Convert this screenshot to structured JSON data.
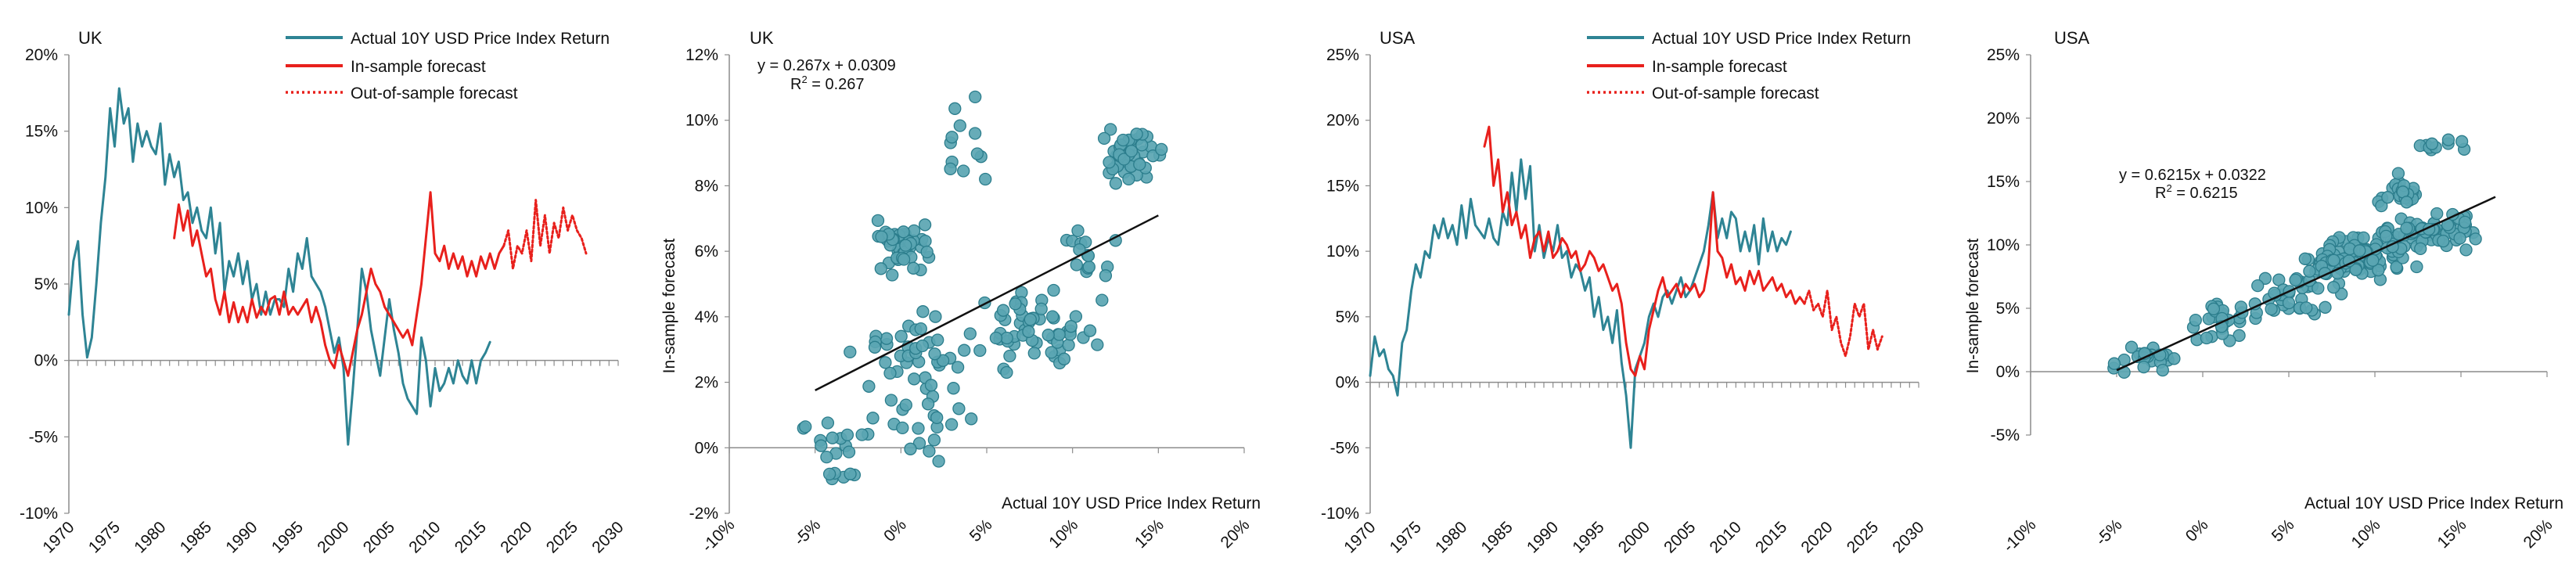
{
  "colors": {
    "actual": "#2e8494",
    "forecast": "#e8201c",
    "scatter_fill": "#5aa5b2",
    "scatter_stroke": "#2b7d8c",
    "axis": "#8c8c8c",
    "fit": "#111111"
  },
  "legend": {
    "actual": "Actual 10Y USD Price Index Return",
    "in_sample": "In-sample forecast",
    "out_sample": "Out-of-sample forecast"
  },
  "chart_data": [
    {
      "type": "line",
      "title": "UK",
      "yticks": [
        "20%",
        "15%",
        "10%",
        "5%",
        "0%",
        "-5%",
        "-10%"
      ],
      "xticks": [
        "1970",
        "1975",
        "1980",
        "1985",
        "1990",
        "1995",
        "2000",
        "2005",
        "2010",
        "2015",
        "2020",
        "2025",
        "2030"
      ],
      "xlim": [
        1970,
        2030
      ],
      "ylim": [
        -10,
        20
      ],
      "series": [
        {
          "name": "Actual 10Y USD Price Index Return",
          "style": "actual",
          "x": [
            1970,
            1970.5,
            1971,
            1971.5,
            1972,
            1972.5,
            1973,
            1973.5,
            1974,
            1974.5,
            1975,
            1975.5,
            1976,
            1976.5,
            1977,
            1977.5,
            1978,
            1978.5,
            1979,
            1979.5,
            1980,
            1980.5,
            1981,
            1981.5,
            1982,
            1982.5,
            1983,
            1983.5,
            1984,
            1984.5,
            1985,
            1985.5,
            1986,
            1986.5,
            1987,
            1987.5,
            1988,
            1988.5,
            1989,
            1989.5,
            1990,
            1990.5,
            1991,
            1991.5,
            1992,
            1992.5,
            1993,
            1993.5,
            1994,
            1994.5,
            1995,
            1995.5,
            1996,
            1996.5,
            1997,
            1997.5,
            1998,
            1998.5,
            1999,
            1999.5,
            2000,
            2000.5,
            2001,
            2001.5,
            2002,
            2002.5,
            2003,
            2003.5,
            2004,
            2004.5,
            2005,
            2005.5,
            2006,
            2006.5,
            2007,
            2007.5,
            2008,
            2008.5,
            2009,
            2009.5,
            2010,
            2010.5,
            2011,
            2011.5,
            2012,
            2012.5,
            2013,
            2013.5,
            2014,
            2014.5,
            2015,
            2015.5,
            2016
          ],
          "y": [
            3.0,
            6.5,
            7.8,
            3.0,
            0.2,
            1.5,
            5.0,
            9.0,
            12.0,
            16.5,
            14.0,
            17.8,
            15.5,
            16.5,
            13.0,
            15.5,
            14.0,
            15.0,
            14.0,
            13.5,
            15.5,
            11.5,
            13.5,
            12.0,
            13.0,
            10.5,
            11.0,
            9.0,
            10.0,
            8.5,
            8.0,
            10.0,
            7.0,
            9.0,
            4.5,
            6.5,
            5.5,
            7.0,
            5.0,
            6.5,
            4.0,
            5.0,
            3.0,
            4.5,
            3.0,
            4.0,
            4.0,
            3.5,
            6.0,
            4.5,
            7.0,
            6.0,
            8.0,
            5.5,
            5.0,
            4.5,
            3.5,
            2.0,
            0.5,
            1.5,
            -0.5,
            -5.5,
            -2.0,
            2.0,
            6.0,
            4.5,
            2.0,
            0.5,
            -1.0,
            1.5,
            4.0,
            2.0,
            0.5,
            -1.5,
            -2.5,
            -3.0,
            -3.5,
            1.5,
            0.0,
            -3.0,
            -0.5,
            -2.0,
            -1.5,
            -0.5,
            -1.5,
            0.0,
            -1.0,
            -1.5,
            0.0,
            -1.5,
            0.0,
            0.5,
            1.2
          ]
        },
        {
          "name": "In-sample forecast",
          "style": "in_sample",
          "x": [
            1981.5,
            1982,
            1982.5,
            1983,
            1983.5,
            1984,
            1984.5,
            1985,
            1985.5,
            1986,
            1986.5,
            1987,
            1987.5,
            1988,
            1988.5,
            1989,
            1989.5,
            1990,
            1990.5,
            1991,
            1991.5,
            1992,
            1992.5,
            1993,
            1993.5,
            1994,
            1994.5,
            1995,
            1995.5,
            1996,
            1996.5,
            1997,
            1997.5,
            1998,
            1998.5,
            1999,
            1999.5,
            2000,
            2000.5,
            2001,
            2001.5,
            2002,
            2002.5,
            2003,
            2003.5,
            2004,
            2004.5,
            2005,
            2005.5,
            2006,
            2006.5,
            2007,
            2007.5,
            2008,
            2008.5,
            2009,
            2009.5,
            2010,
            2010.5,
            2011,
            2011.5,
            2012,
            2012.5,
            2013,
            2013.5,
            2014,
            2014.5,
            2015,
            2015.5,
            2016,
            2016.5,
            2017,
            2017.5
          ],
          "y": [
            8.0,
            10.2,
            8.5,
            9.8,
            7.5,
            8.5,
            7.0,
            5.5,
            6.0,
            4.0,
            3.0,
            4.5,
            2.5,
            3.8,
            2.5,
            3.5,
            2.5,
            4.0,
            2.8,
            3.5,
            3.0,
            4.0,
            4.2,
            3.0,
            4.5,
            3.0,
            3.5,
            3.0,
            3.5,
            4.0,
            2.5,
            3.5,
            2.5,
            1.0,
            0.0,
            -0.5,
            1.0,
            0.0,
            -1.0,
            0.5,
            2.0,
            3.0,
            4.5,
            6.0,
            5.0,
            4.5,
            3.5,
            3.0,
            2.5,
            2.0,
            1.5,
            2.0,
            1.0,
            3.0,
            5.0,
            8.0,
            11.0,
            7.0,
            6.5,
            7.5,
            6.0,
            7.0,
            6.0,
            6.8,
            5.5,
            6.5,
            5.5,
            6.8,
            6.0,
            7.0,
            6.0,
            7.0,
            7.5
          ]
        },
        {
          "name": "Out-of-sample forecast",
          "style": "out_sample",
          "x": [
            2017.5,
            2018,
            2018.5,
            2019,
            2019.5,
            2020,
            2020.5,
            2021,
            2021.5,
            2022,
            2022.5,
            2023,
            2023.5,
            2024,
            2024.5,
            2025,
            2025.5,
            2026,
            2026.5
          ],
          "y": [
            7.5,
            8.5,
            6.0,
            7.5,
            7.0,
            8.5,
            6.5,
            10.5,
            7.5,
            9.5,
            7.0,
            9.0,
            8.0,
            10.0,
            8.5,
            9.5,
            8.5,
            8.0,
            7.0
          ]
        }
      ]
    },
    {
      "type": "scatter",
      "title": "UK",
      "ylabel": "In-sample forecast",
      "xlabel": "Actual 10Y USD Price Index Return",
      "equation": "y = 0.267x + 0.0309",
      "r2_label": "R",
      "r2_value": "2",
      "r2_rest": " = 0.267",
      "yticks": [
        "12%",
        "10%",
        "8%",
        "6%",
        "4%",
        "2%",
        "0%",
        "-2%"
      ],
      "xticks": [
        "-10%",
        "-5%",
        "0%",
        "5%",
        "10%",
        "15%",
        "20%"
      ],
      "xlim": [
        -10,
        20
      ],
      "ylim": [
        -2,
        12
      ],
      "trendline": {
        "slope": 0.267,
        "intercept": 3.09,
        "x_range": [
          -5,
          15
        ]
      },
      "clusters": [
        {
          "cx": 0,
          "cy": 6.2,
          "sx": 1.0,
          "sy": 0.5,
          "n": 55
        },
        {
          "cx": 13.5,
          "cy": 9.0,
          "sx": 1.3,
          "sy": 0.6,
          "n": 45
        },
        {
          "cx": 8.0,
          "cy": 3.5,
          "sx": 2.5,
          "sy": 0.8,
          "n": 60
        },
        {
          "cx": 0.5,
          "cy": 2.0,
          "sx": 2.5,
          "sy": 1.5,
          "n": 60
        },
        {
          "cx": -3.5,
          "cy": -0.2,
          "sx": 1.5,
          "sy": 0.7,
          "n": 20
        },
        {
          "cx": 4.0,
          "cy": 8.8,
          "sx": 1.2,
          "sy": 1.0,
          "n": 12
        },
        {
          "cx": 11.0,
          "cy": 6.0,
          "sx": 1.0,
          "sy": 0.9,
          "n": 15
        }
      ]
    },
    {
      "type": "line",
      "title": "USA",
      "yticks": [
        "25%",
        "20%",
        "15%",
        "10%",
        "5%",
        "0%",
        "-5%",
        "-10%"
      ],
      "xticks": [
        "1970",
        "1975",
        "1980",
        "1985",
        "1990",
        "1995",
        "2000",
        "2005",
        "2010",
        "2015",
        "2020",
        "2025",
        "2030"
      ],
      "xlim": [
        1970,
        2030
      ],
      "ylim": [
        -10,
        25
      ],
      "series": [
        {
          "name": "Actual 10Y USD Price Index Return",
          "style": "actual",
          "x": [
            1970,
            1970.5,
            1971,
            1971.5,
            1972,
            1972.5,
            1973,
            1973.5,
            1974,
            1974.5,
            1975,
            1975.5,
            1976,
            1976.5,
            1977,
            1977.5,
            1978,
            1978.5,
            1979,
            1979.5,
            1980,
            1980.5,
            1981,
            1981.5,
            1982,
            1982.5,
            1983,
            1983.5,
            1984,
            1984.5,
            1985,
            1985.5,
            1986,
            1986.5,
            1987,
            1987.5,
            1988,
            1988.5,
            1989,
            1989.5,
            1990,
            1990.5,
            1991,
            1991.5,
            1992,
            1992.5,
            1993,
            1993.5,
            1994,
            1994.5,
            1995,
            1995.5,
            1996,
            1996.5,
            1997,
            1997.5,
            1998,
            1998.5,
            1999,
            1999.5,
            2000,
            2000.5,
            2001,
            2001.5,
            2002,
            2002.5,
            2003,
            2003.5,
            2004,
            2004.5,
            2005,
            2005.5,
            2006,
            2006.5,
            2007,
            2007.5,
            2008,
            2008.5,
            2009,
            2009.5,
            2010,
            2010.5,
            2011,
            2011.5,
            2012,
            2012.5,
            2013,
            2013.5,
            2014,
            2014.5,
            2015,
            2015.5,
            2016
          ],
          "y": [
            0.5,
            3.5,
            2.0,
            2.5,
            1.0,
            0.5,
            -1.0,
            3.0,
            4.0,
            7.0,
            9.0,
            8.0,
            10.0,
            9.5,
            12.0,
            11.0,
            12.5,
            11.0,
            12.0,
            10.5,
            13.5,
            11.0,
            14.0,
            12.0,
            11.5,
            11.0,
            12.5,
            11.0,
            10.5,
            13.0,
            12.0,
            16.0,
            13.0,
            17.0,
            14.0,
            16.5,
            10.0,
            12.0,
            9.5,
            11.0,
            10.0,
            12.0,
            9.5,
            10.0,
            8.0,
            9.0,
            8.5,
            7.0,
            8.0,
            5.0,
            6.5,
            4.0,
            5.0,
            3.0,
            5.5,
            1.5,
            -1.0,
            -5.0,
            1.0,
            2.0,
            3.0,
            5.0,
            6.0,
            5.0,
            6.5,
            7.0,
            6.0,
            7.0,
            8.0,
            6.5,
            7.0,
            8.0,
            9.0,
            10.0,
            12.0,
            14.5,
            11.0,
            12.5,
            11.0,
            13.0,
            12.5,
            10.0,
            11.5,
            10.0,
            12.0,
            9.0,
            12.5,
            10.0,
            11.5,
            10.0,
            11.0,
            10.5,
            11.5
          ]
        },
        {
          "name": "In-sample forecast",
          "style": "in_sample",
          "x": [
            1982.5,
            1983,
            1983.5,
            1984,
            1984.5,
            1985,
            1985.5,
            1986,
            1986.5,
            1987,
            1987.5,
            1988,
            1988.5,
            1989,
            1989.5,
            1990,
            1990.5,
            1991,
            1991.5,
            1992,
            1992.5,
            1993,
            1993.5,
            1994,
            1994.5,
            1995,
            1995.5,
            1996,
            1996.5,
            1997,
            1997.5,
            1998,
            1998.5,
            1999,
            1999.5,
            2000,
            2000.5,
            2001,
            2001.5,
            2002,
            2002.5,
            2003,
            2003.5,
            2004,
            2004.5,
            2005,
            2005.5,
            2006,
            2006.5,
            2007,
            2007.5,
            2008,
            2008.5,
            2009,
            2009.5,
            2010,
            2010.5,
            2011,
            2011.5,
            2012,
            2012.5,
            2013,
            2013.5,
            2014,
            2014.5,
            2015,
            2015.5,
            2016,
            2016.5,
            2017,
            2017.5
          ],
          "y": [
            18.0,
            19.5,
            15.0,
            17.0,
            13.0,
            14.5,
            12.0,
            13.0,
            11.0,
            12.0,
            9.5,
            11.0,
            11.5,
            10.0,
            11.5,
            9.5,
            10.0,
            11.0,
            10.5,
            9.5,
            10.0,
            8.5,
            9.0,
            10.0,
            9.5,
            8.5,
            9.0,
            8.0,
            7.0,
            7.5,
            6.0,
            3.0,
            1.0,
            0.5,
            2.0,
            1.0,
            4.0,
            5.5,
            7.0,
            8.0,
            6.5,
            7.0,
            7.5,
            6.5,
            7.5,
            7.0,
            7.5,
            6.5,
            7.0,
            9.0,
            14.5,
            10.0,
            9.5,
            8.0,
            9.0,
            7.5,
            8.0,
            7.0,
            8.5,
            7.5,
            8.5,
            7.0,
            7.5,
            8.0,
            7.0,
            7.5,
            6.5,
            7.0,
            6.0,
            6.5,
            6.0
          ]
        },
        {
          "name": "Out-of-sample forecast",
          "style": "out_sample",
          "x": [
            2017.5,
            2018,
            2018.5,
            2019,
            2019.5,
            2020,
            2020.5,
            2021,
            2021.5,
            2022,
            2022.5,
            2023,
            2023.5,
            2024,
            2024.5,
            2025,
            2025.5,
            2026
          ],
          "y": [
            6.0,
            7.0,
            5.5,
            6.0,
            5.0,
            7.0,
            4.0,
            5.0,
            3.0,
            2.0,
            3.5,
            6.0,
            5.0,
            6.0,
            2.5,
            4.0,
            2.5,
            3.5
          ]
        }
      ]
    },
    {
      "type": "scatter",
      "title": "USA",
      "ylabel": "In-sample forecast",
      "xlabel": "Actual 10Y USD Price Index Return",
      "equation": "y = 0.6215x + 0.0322",
      "r2_label": "R",
      "r2_value": "2",
      "r2_rest": " = 0.6215",
      "yticks": [
        "25%",
        "20%",
        "15%",
        "10%",
        "5%",
        "0%",
        "-5%"
      ],
      "xticks": [
        "-10%",
        "-5%",
        "0%",
        "5%",
        "10%",
        "15%",
        "20%"
      ],
      "xlim": [
        -10,
        20
      ],
      "ylim": [
        -5,
        25
      ],
      "trendline": {
        "slope": 0.6215,
        "intercept": 3.22,
        "x_range": [
          -5,
          17
        ]
      },
      "clusters": [
        {
          "cx": -3.0,
          "cy": 1.0,
          "sx": 1.5,
          "sy": 0.6,
          "n": 25
        },
        {
          "cx": 1.5,
          "cy": 4.0,
          "sx": 1.5,
          "sy": 1.2,
          "n": 30
        },
        {
          "cx": 6.0,
          "cy": 6.0,
          "sx": 2.0,
          "sy": 1.5,
          "n": 40
        },
        {
          "cx": 9.5,
          "cy": 9.5,
          "sx": 2.0,
          "sy": 1.2,
          "n": 70
        },
        {
          "cx": 13.5,
          "cy": 11.0,
          "sx": 1.8,
          "sy": 0.9,
          "n": 60
        },
        {
          "cx": 11.5,
          "cy": 14.0,
          "sx": 0.8,
          "sy": 1.0,
          "n": 25
        },
        {
          "cx": 14.0,
          "cy": 18.0,
          "sx": 1.0,
          "sy": 0.7,
          "n": 10
        },
        {
          "cx": 8.0,
          "cy": 8.5,
          "sx": 1.5,
          "sy": 0.8,
          "n": 40
        }
      ]
    }
  ]
}
